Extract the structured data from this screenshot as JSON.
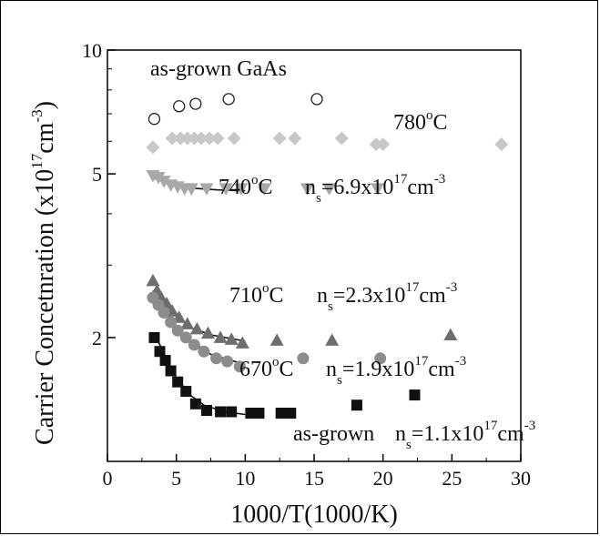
{
  "chart_data": {
    "type": "scatter",
    "title": "",
    "xlabel": "1000/T(1000/K)",
    "ylabel": "Carrier Concetnration (x10",
    "ylabel_exp": "17",
    "ylabel_unit": "cm",
    "ylabel_unit_exp": "-3",
    "ylabel_close": ")",
    "xlim": [
      0,
      30
    ],
    "ylim": [
      1,
      10
    ],
    "yscale": "log",
    "x_ticks": [
      "0",
      "5",
      "10",
      "15",
      "20",
      "25",
      "30"
    ],
    "y_ticks": [
      "10",
      "5",
      "2"
    ],
    "grid": false,
    "series": [
      {
        "name": "as-grown GaAs",
        "marker": "circle-open",
        "color": "#222222",
        "points": [
          [
            3.4,
            6.8
          ],
          [
            5.2,
            7.3
          ],
          [
            6.4,
            7.4
          ],
          [
            8.8,
            7.6
          ],
          [
            15.2,
            7.6
          ]
        ]
      },
      {
        "name": "780oC",
        "marker": "diamond",
        "color": "#c8c8c8",
        "points": [
          [
            3.3,
            5.8
          ],
          [
            4.7,
            6.1
          ],
          [
            5.3,
            6.1
          ],
          [
            5.8,
            6.1
          ],
          [
            6.3,
            6.1
          ],
          [
            6.8,
            6.1
          ],
          [
            7.4,
            6.1
          ],
          [
            8.0,
            6.1
          ],
          [
            9.2,
            6.1
          ],
          [
            12.5,
            6.1
          ],
          [
            13.6,
            6.1
          ],
          [
            17.0,
            6.1
          ],
          [
            19.5,
            5.9
          ],
          [
            20.0,
            5.9
          ],
          [
            28.6,
            5.9
          ]
        ]
      },
      {
        "name": "740oC",
        "marker": "triangle-down",
        "color": "#a8a8a8",
        "points": [
          [
            3.3,
            4.95
          ],
          [
            3.7,
            4.9
          ],
          [
            4.1,
            4.8
          ],
          [
            4.6,
            4.7
          ],
          [
            5.1,
            4.65
          ],
          [
            5.6,
            4.6
          ],
          [
            6.1,
            4.6
          ],
          [
            7.2,
            4.6
          ],
          [
            8.6,
            4.6
          ],
          [
            9.7,
            4.6
          ],
          [
            11.4,
            4.6
          ],
          [
            14.5,
            4.6
          ],
          [
            16.1,
            4.6
          ],
          [
            19.6,
            4.6
          ]
        ]
      },
      {
        "name": "710oC",
        "marker": "triangle-up",
        "color": "#6e6e6e",
        "points": [
          [
            3.3,
            2.75
          ],
          [
            3.6,
            2.6
          ],
          [
            3.9,
            2.5
          ],
          [
            4.3,
            2.42
          ],
          [
            4.7,
            2.32
          ],
          [
            5.2,
            2.24
          ],
          [
            5.8,
            2.16
          ],
          [
            6.5,
            2.1
          ],
          [
            7.3,
            2.05
          ],
          [
            8.2,
            2.0
          ],
          [
            9.0,
            1.98
          ],
          [
            9.8,
            1.94
          ],
          [
            12.3,
            1.97
          ],
          [
            16.3,
            1.97
          ],
          [
            24.9,
            2.03
          ]
        ]
      },
      {
        "name": "670oC",
        "marker": "circle",
        "color": "#8c8c8c",
        "points": [
          [
            3.3,
            2.5
          ],
          [
            3.7,
            2.4
          ],
          [
            4.1,
            2.3
          ],
          [
            4.6,
            2.18
          ],
          [
            5.1,
            2.08
          ],
          [
            5.7,
            2.0
          ],
          [
            6.3,
            1.92
          ],
          [
            7.0,
            1.85
          ],
          [
            7.9,
            1.78
          ],
          [
            8.7,
            1.75
          ],
          [
            9.6,
            1.7
          ],
          [
            14.2,
            1.78
          ],
          [
            19.8,
            1.78
          ]
        ]
      },
      {
        "name": "as-grown",
        "marker": "square",
        "color": "#111111",
        "points": [
          [
            3.4,
            2.0
          ],
          [
            3.8,
            1.85
          ],
          [
            4.2,
            1.76
          ],
          [
            4.6,
            1.66
          ],
          [
            5.1,
            1.56
          ],
          [
            5.7,
            1.48
          ],
          [
            6.4,
            1.38
          ],
          [
            7.2,
            1.33
          ],
          [
            8.2,
            1.32
          ],
          [
            9.0,
            1.32
          ],
          [
            10.4,
            1.31
          ],
          [
            11.0,
            1.31
          ],
          [
            12.6,
            1.31
          ],
          [
            13.3,
            1.31
          ],
          [
            18.1,
            1.37
          ],
          [
            22.3,
            1.45
          ]
        ]
      }
    ],
    "fits": [
      {
        "name": "740oC fit",
        "points": [
          [
            3.3,
            4.9
          ],
          [
            4.5,
            4.72
          ],
          [
            6.0,
            4.62
          ],
          [
            8.0,
            4.57
          ],
          [
            10.0,
            4.55
          ]
        ]
      },
      {
        "name": "710oC fit",
        "points": [
          [
            3.3,
            2.8
          ],
          [
            4.0,
            2.5
          ],
          [
            5.0,
            2.25
          ],
          [
            6.0,
            2.12
          ],
          [
            7.5,
            2.03
          ],
          [
            10.0,
            1.96
          ]
        ]
      },
      {
        "name": "670oC fit",
        "points": [
          [
            3.3,
            2.6
          ],
          [
            4.0,
            2.35
          ],
          [
            5.0,
            2.12
          ],
          [
            6.0,
            1.97
          ],
          [
            7.5,
            1.82
          ],
          [
            10.0,
            1.72
          ]
        ]
      },
      {
        "name": "as-grown fit",
        "points": [
          [
            3.4,
            2.05
          ],
          [
            4.2,
            1.8
          ],
          [
            5.0,
            1.6
          ],
          [
            6.0,
            1.45
          ],
          [
            7.0,
            1.37
          ],
          [
            8.5,
            1.32
          ],
          [
            10.0,
            1.3
          ]
        ]
      }
    ],
    "annotations": {
      "asgrown_gaas": "as-grown GaAs",
      "t780": "780",
      "t780_deg": "o",
      "t780_c": "C",
      "t740": "740",
      "t740_deg": "o",
      "t740_c": "C",
      "ns740_pre": "n",
      "ns740_sub": "s",
      "ns740_val": "=6.9x10",
      "ns740_exp": "17",
      "ns740_unit": "cm",
      "ns740_unit_exp": "-3",
      "t710": "710",
      "t710_deg": "o",
      "t710_c": "C",
      "ns710_pre": "n",
      "ns710_sub": "s",
      "ns710_val": "=2.3x10",
      "ns710_exp": "17",
      "ns710_unit": "cm",
      "ns710_unit_exp": "-3",
      "t670": "670",
      "t670_deg": "o",
      "t670_c": "C",
      "ns670_pre": "n",
      "ns670_sub": "s",
      "ns670_val": "=1.9x10",
      "ns670_exp": "17",
      "ns670_unit": "cm",
      "ns670_unit_exp": "-3",
      "asgrown": "as-grown",
      "nsag_pre": "n",
      "nsag_sub": "s",
      "nsag_val": "=1.1x10",
      "nsag_exp": "17",
      "nsag_unit": "cm",
      "nsag_unit_exp": "-3"
    }
  }
}
